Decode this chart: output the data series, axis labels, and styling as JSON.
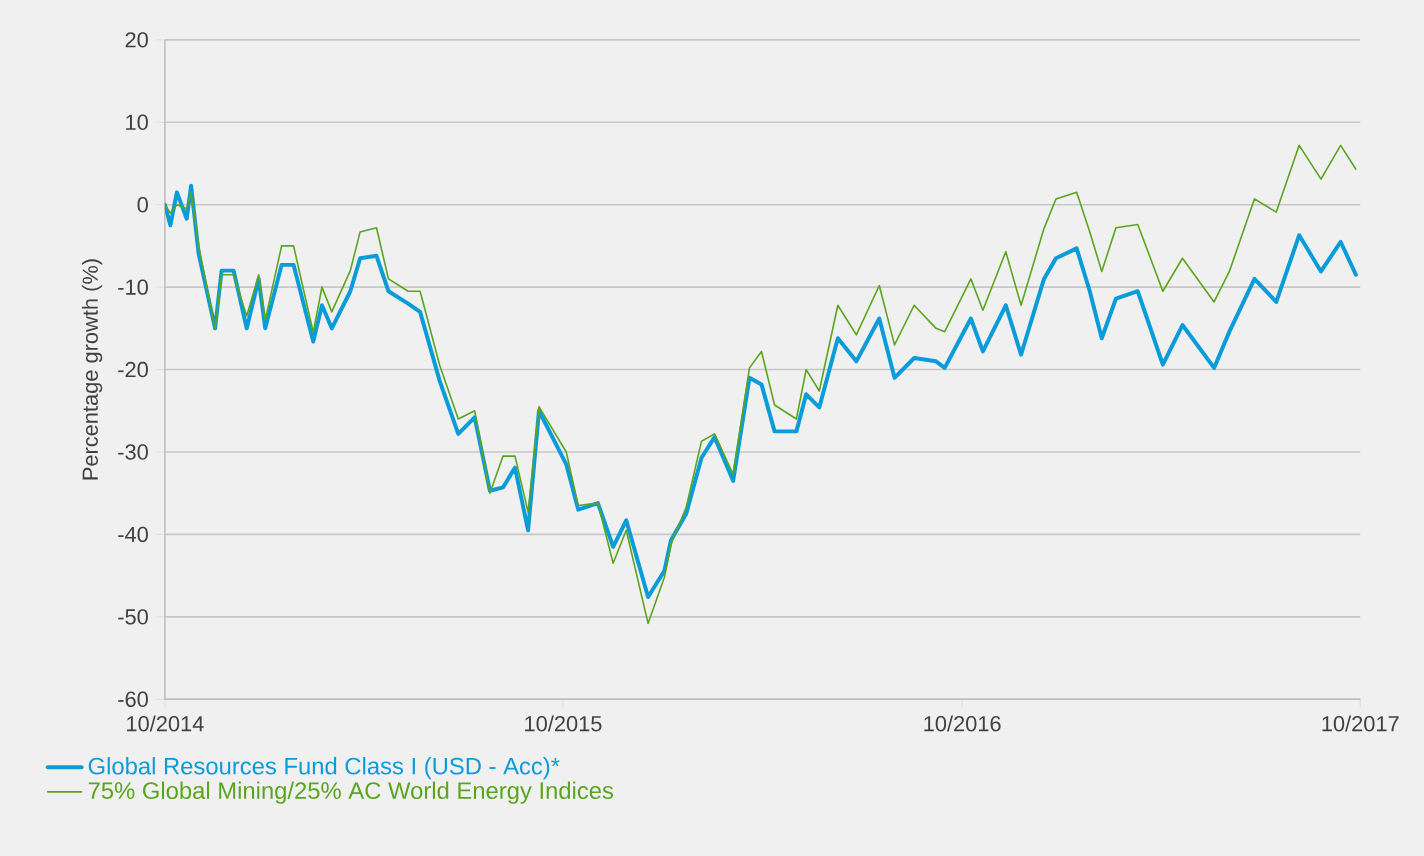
{
  "chart_data": {
    "type": "line",
    "ylabel": "Percentage growth (%)",
    "x": [
      "2014-10-01",
      "2014-10-06",
      "2014-10-12",
      "2014-10-21",
      "2014-10-25",
      "2014-11-01",
      "2014-11-16",
      "2014-11-22",
      "2014-12-03",
      "2014-12-15",
      "2014-12-26",
      "2015-01-01",
      "2015-01-16",
      "2015-01-27",
      "2015-02-14",
      "2015-02-22",
      "2015-03-03",
      "2015-03-20",
      "2015-03-29",
      "2015-04-13",
      "2015-04-24",
      "2015-05-12",
      "2015-05-23",
      "2015-06-10",
      "2015-06-27",
      "2015-07-12",
      "2015-07-26",
      "2015-08-07",
      "2015-08-18",
      "2015-08-30",
      "2015-09-09",
      "2015-10-04",
      "2015-10-15",
      "2015-11-02",
      "2015-11-16",
      "2015-11-28",
      "2015-12-18",
      "2016-01-02",
      "2016-01-08",
      "2016-01-22",
      "2016-02-05",
      "2016-02-17",
      "2016-03-05",
      "2016-03-20",
      "2016-03-31",
      "2016-04-12",
      "2016-05-02",
      "2016-05-11",
      "2016-05-23",
      "2016-06-09",
      "2016-06-26",
      "2016-07-17",
      "2016-07-31",
      "2016-08-18",
      "2016-09-07",
      "2016-09-15",
      "2016-10-09",
      "2016-10-20",
      "2016-11-10",
      "2016-11-24",
      "2016-12-15",
      "2016-12-26",
      "2017-01-14",
      "2017-01-26",
      "2017-02-06",
      "2017-02-19",
      "2017-03-11",
      "2017-04-03",
      "2017-04-21",
      "2017-05-20",
      "2017-06-03",
      "2017-06-26",
      "2017-07-16",
      "2017-08-06",
      "2017-08-26",
      "2017-09-13",
      "2017-09-27"
    ],
    "series": [
      {
        "name": "Global Resources Fund Class I (USD - Acc)*",
        "color": "#0a9bd9",
        "values": [
          0,
          -2.5,
          1.5,
          -1.7,
          2.3,
          -6,
          -15,
          -8,
          -8,
          -15,
          -9,
          -15,
          -7.3,
          -7.3,
          -16.6,
          -12.2,
          -15,
          -10.5,
          -6.5,
          -6.2,
          -10.5,
          -12,
          -13,
          -21.4,
          -27.8,
          -25.8,
          -34.7,
          -34.3,
          -31.9,
          -39.5,
          -25,
          -31.5,
          -37,
          -36.2,
          -41.5,
          -38.3,
          -47.6,
          -44.4,
          -40.7,
          -37.5,
          -30.7,
          -28.2,
          -33.5,
          -21,
          -21.8,
          -27.5,
          -27.5,
          -23,
          -24.6,
          -16.2,
          -19,
          -13.8,
          -21,
          -18.6,
          -19,
          -19.8,
          -13.8,
          -17.8,
          -12.2,
          -18.2,
          -9,
          -6.5,
          -5.3,
          -10.5,
          -16.2,
          -11.4,
          -10.5,
          -19.4,
          -14.6,
          -19.8,
          -15.4,
          -9,
          -11.8,
          -3.7,
          -8.1,
          -4.5,
          -8.5
        ]
      },
      {
        "name": "75% Global Mining/25% AC World Energy Indices",
        "color": "#5aa51e",
        "values": [
          0,
          -1,
          0,
          -0.5,
          1.5,
          -5,
          -15,
          -8.5,
          -8.5,
          -13.5,
          -8.5,
          -14,
          -5,
          -5,
          -15.5,
          -10,
          -13,
          -8,
          -3.3,
          -2.8,
          -9,
          -10.5,
          -10.5,
          -19.5,
          -26,
          -25,
          -35,
          -30.5,
          -30.5,
          -37.3,
          -24.5,
          -30,
          -36.5,
          -36.2,
          -43.5,
          -39.5,
          -50.8,
          -45.2,
          -41.2,
          -36.7,
          -28.7,
          -27.8,
          -32.7,
          -19.8,
          -17.8,
          -24.3,
          -26,
          -20,
          -22.6,
          -12.2,
          -15.8,
          -9.8,
          -17,
          -12.2,
          -15,
          -15.4,
          -9,
          -12.8,
          -5.7,
          -12.2,
          -2.9,
          0.7,
          1.5,
          -3.3,
          -8.1,
          -2.8,
          -2.4,
          -10.5,
          -6.5,
          -11.8,
          -8.1,
          0.7,
          -0.9,
          7.2,
          3.1,
          7.2,
          4.3
        ]
      }
    ],
    "xlim": [
      "2014-10-01",
      "2017-10-01"
    ],
    "xticks": [
      {
        "value": "2014-10-01",
        "label": "10/2014"
      },
      {
        "value": "2015-10-01",
        "label": "10/2015"
      },
      {
        "value": "2016-10-01",
        "label": "10/2016"
      },
      {
        "value": "2017-10-01",
        "label": "10/2017"
      }
    ],
    "ylim": [
      -60,
      20
    ],
    "yticks": [
      -60,
      -50,
      -40,
      -30,
      -20,
      -10,
      0,
      10,
      20
    ],
    "grid": "y",
    "legend": "bottom left",
    "marker": "none",
    "line_style": "solid"
  }
}
